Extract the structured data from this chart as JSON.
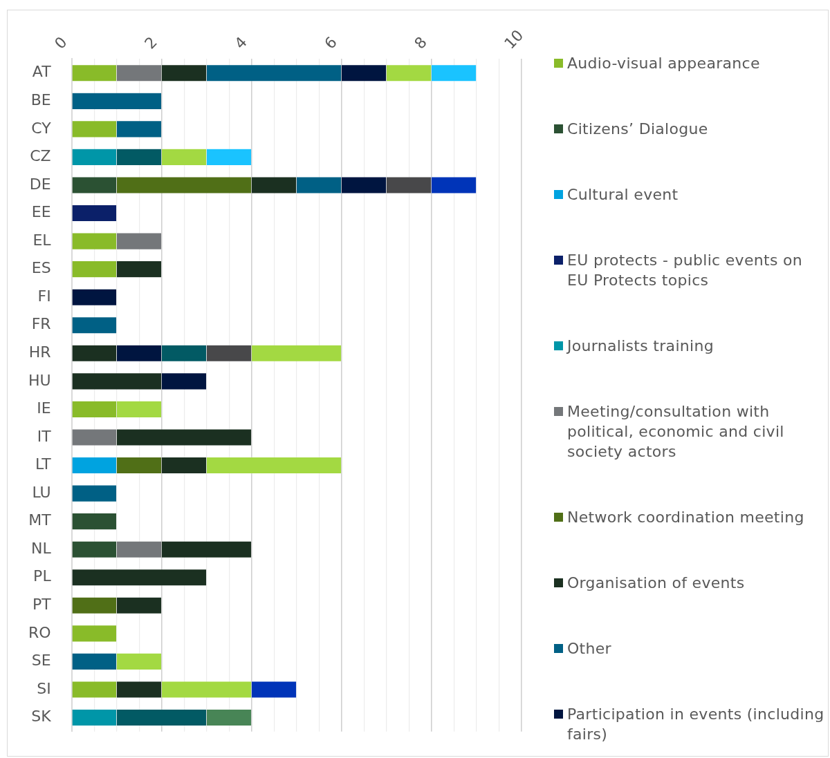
{
  "chart_data": {
    "type": "bar",
    "orientation": "horizontal",
    "stacked": true,
    "grid": "x",
    "legend": "right",
    "categories": [
      "AT",
      "BE",
      "CY",
      "CZ",
      "DE",
      "EE",
      "EL",
      "ES",
      "FI",
      "FR",
      "HR",
      "HU",
      "IE",
      "IT",
      "LT",
      "LU",
      "MT",
      "NL",
      "PL",
      "PT",
      "RO",
      "SE",
      "SI",
      "SK"
    ],
    "xlim": [
      0,
      10
    ],
    "xticks": [
      0,
      {
        "value": 0.5,
        "label": null
      },
      2,
      {
        "value": 1,
        "label": null
      },
      {
        "value": 1.5,
        "label": null
      },
      {
        "value": 2.5,
        "label": null
      },
      {
        "value": 3,
        "label": null
      },
      {
        "value": 3.5,
        "label": null
      },
      4,
      {
        "value": 4.5,
        "label": null
      },
      {
        "value": 5,
        "label": null
      },
      {
        "value": 5.5,
        "label": null
      },
      6,
      {
        "value": 6.5,
        "label": null
      },
      {
        "value": 7,
        "label": null
      },
      {
        "value": 7.5,
        "label": null
      },
      8,
      {
        "value": 8.5,
        "label": null
      },
      {
        "value": 9,
        "label": null
      },
      {
        "value": 9.5,
        "label": null
      },
      10
    ],
    "series": [
      {
        "name": "Audio-visual appearance",
        "color": "#89bb29",
        "values": [
          1,
          null,
          1,
          null,
          null,
          null,
          1,
          1,
          null,
          null,
          null,
          null,
          1,
          null,
          null,
          null,
          null,
          null,
          null,
          null,
          1,
          null,
          1,
          null
        ]
      },
      {
        "name": "Citizens’ Dialogue",
        "color": "#2b5133",
        "values": [
          null,
          null,
          null,
          null,
          1,
          null,
          null,
          null,
          null,
          null,
          null,
          null,
          null,
          null,
          null,
          null,
          1,
          1,
          null,
          null,
          null,
          null,
          null,
          null
        ]
      },
      {
        "name": "Cultural event",
        "color": "#00a3e0",
        "values": [
          null,
          null,
          null,
          null,
          null,
          null,
          null,
          null,
          null,
          null,
          null,
          null,
          null,
          null,
          1,
          null,
          null,
          null,
          null,
          null,
          null,
          null,
          null,
          null
        ]
      },
      {
        "name": "EU protects - public events on EU Protects topics",
        "color": "#0b2069",
        "values": [
          null,
          null,
          null,
          null,
          null,
          1,
          null,
          null,
          null,
          null,
          null,
          null,
          null,
          null,
          null,
          null,
          null,
          null,
          null,
          null,
          null,
          null,
          null,
          null
        ]
      },
      {
        "name": "Journalists training",
        "color": "#0096a8",
        "values": [
          null,
          null,
          null,
          1,
          null,
          null,
          null,
          null,
          null,
          null,
          null,
          null,
          null,
          null,
          null,
          null,
          null,
          null,
          null,
          null,
          null,
          null,
          null,
          1
        ]
      },
      {
        "name": "Meeting/consultation with political, economic and civil society actors",
        "color": "#74777a",
        "values": [
          1,
          null,
          null,
          null,
          null,
          null,
          1,
          null,
          null,
          null,
          null,
          null,
          null,
          1,
          null,
          null,
          null,
          1,
          null,
          null,
          null,
          null,
          null,
          null
        ]
      },
      {
        "name": "Network coordination meeting",
        "color": "#506f17",
        "values": [
          null,
          null,
          null,
          null,
          3,
          null,
          null,
          null,
          null,
          null,
          null,
          null,
          null,
          null,
          1,
          null,
          null,
          null,
          null,
          1,
          null,
          null,
          null,
          null
        ]
      },
      {
        "name": "Organisation of events",
        "color": "#1b3021",
        "values": [
          1,
          null,
          null,
          null,
          1,
          null,
          null,
          1,
          null,
          null,
          1,
          2,
          null,
          3,
          1,
          null,
          null,
          2,
          3,
          1,
          null,
          null,
          1,
          null
        ]
      },
      {
        "name": "Other",
        "color": "#006085",
        "values": [
          3,
          2,
          1,
          null,
          1,
          null,
          null,
          null,
          null,
          1,
          null,
          null,
          null,
          null,
          null,
          1,
          null,
          null,
          null,
          null,
          null,
          1,
          null,
          null
        ]
      },
      {
        "name": "Participation in events (including fairs)",
        "color": "#001540",
        "values": [
          1,
          null,
          null,
          null,
          1,
          null,
          null,
          null,
          1,
          null,
          1,
          1,
          null,
          null,
          null,
          null,
          null,
          null,
          null,
          null,
          null,
          null,
          null,
          null
        ]
      },
      {
        "color": "#025a64",
        "values": [
          null,
          null,
          null,
          1,
          null,
          null,
          null,
          null,
          null,
          null,
          1,
          null,
          null,
          null,
          null,
          null,
          null,
          null,
          null,
          null,
          null,
          null,
          null,
          2
        ]
      },
      {
        "color": "#48484a",
        "values": [
          null,
          null,
          null,
          null,
          1,
          null,
          null,
          null,
          null,
          null,
          1,
          null,
          null,
          null,
          null,
          null,
          null,
          null,
          null,
          null,
          null,
          null,
          null,
          null
        ]
      },
      {
        "color": "#a3d942",
        "values": [
          1,
          null,
          null,
          1,
          null,
          null,
          null,
          null,
          null,
          null,
          2,
          null,
          1,
          null,
          3,
          null,
          null,
          null,
          null,
          null,
          null,
          1,
          2,
          null
        ]
      },
      {
        "color": "#1ac3ff",
        "values": [
          1,
          null,
          null,
          1,
          null,
          null,
          null,
          null,
          null,
          null,
          null,
          null,
          null,
          null,
          null,
          null,
          null,
          null,
          null,
          null,
          null,
          null,
          null,
          null
        ]
      },
      {
        "color": "#0034b8",
        "values": [
          null,
          null,
          null,
          null,
          1,
          null,
          null,
          null,
          null,
          null,
          null,
          null,
          null,
          null,
          null,
          null,
          null,
          null,
          null,
          null,
          null,
          null,
          1,
          null
        ]
      },
      {
        "color": "#488556",
        "values": [
          null,
          null,
          null,
          null,
          null,
          null,
          null,
          null,
          null,
          null,
          null,
          null,
          null,
          null,
          null,
          null,
          null,
          null,
          null,
          null,
          null,
          null,
          null,
          1
        ]
      }
    ]
  }
}
